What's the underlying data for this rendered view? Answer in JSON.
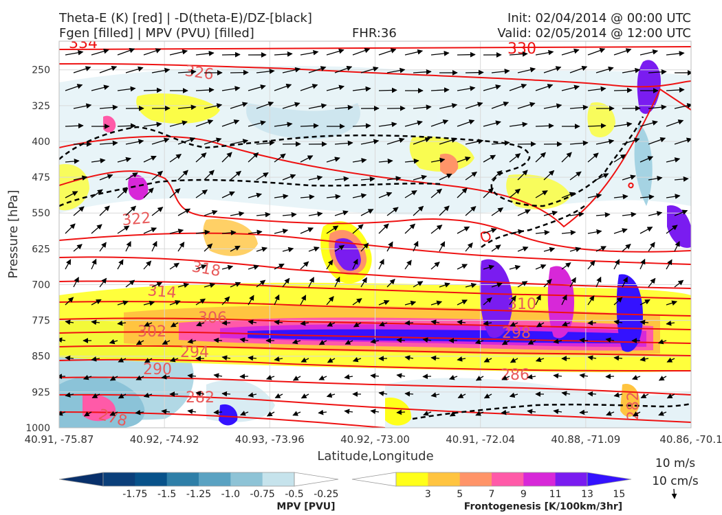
{
  "header": {
    "title_line1": "Theta-E (K) [red] | -D(theta-E)/DZ-[black]",
    "title_line2": "Fgen [filled] | MPV (PVU) [filled]",
    "fhr": "FHR:36",
    "init": "Init: 02/04/2014 @ 00:00 UTC",
    "valid": "Valid: 02/05/2014 @ 12:00 UTC"
  },
  "chart_data": {
    "type": "cross-section",
    "xlabel": "Latitude,Longitude",
    "ylabel": "Pressure [hPa]",
    "x_ticks": [
      "40.91, -75.87",
      "40.92, -74.92",
      "40.93, -73.96",
      "40.92, -73.00",
      "40.91, -72.04",
      "40.88, -71.09",
      "40.86, -70.1"
    ],
    "y_ticks": [
      "250",
      "325",
      "400",
      "475",
      "550",
      "625",
      "700",
      "775",
      "850",
      "925",
      "1000"
    ],
    "y_values": [
      250,
      325,
      400,
      475,
      550,
      625,
      700,
      775,
      850,
      925,
      1000
    ],
    "ylim": [
      1000,
      190
    ],
    "grid": true,
    "theta_e_contours": [
      {
        "level": 334,
        "label": "334"
      },
      {
        "level": 330,
        "label": "330"
      },
      {
        "level": 326,
        "label": "326"
      },
      {
        "level": 322,
        "label": "322"
      },
      {
        "level": 318,
        "label": "318"
      },
      {
        "level": 314,
        "label": "314"
      },
      {
        "level": 310,
        "label": "310"
      },
      {
        "level": 306,
        "label": "306"
      },
      {
        "level": 302,
        "label": "302"
      },
      {
        "level": 298,
        "label": "298"
      },
      {
        "level": 294,
        "label": "294"
      },
      {
        "level": 290,
        "label": "290"
      },
      {
        "level": 286,
        "label": "286"
      },
      {
        "level": 282,
        "label": "282"
      },
      {
        "level": 278,
        "label": "278"
      }
    ],
    "mpv_colorbar": {
      "label": "MPV [PVU]",
      "ticks": [
        "-1.75",
        "-1.5",
        "-1.25",
        "-1.0",
        "-0.75",
        "-0.5",
        "-0.25"
      ],
      "colors": [
        "#08306b",
        "#0b3f7a",
        "#08528a",
        "#2f7fa8",
        "#5aa2c2",
        "#8ec3d6",
        "#c6e3ec",
        "#ffffff"
      ]
    },
    "fgen_colorbar": {
      "label": "Frontogenesis [K/100km/3hr]",
      "ticks": [
        "3",
        "5",
        "7",
        "9",
        "11",
        "13",
        "15"
      ],
      "colors": [
        "#ffffff",
        "#ffff1a",
        "#ffc440",
        "#ff9468",
        "#ff5aa8",
        "#d728d8",
        "#7a1cf0",
        "#3412ff"
      ]
    },
    "vector_key": {
      "u_label": "10 m/s",
      "w_label": "10 cm/s"
    }
  }
}
